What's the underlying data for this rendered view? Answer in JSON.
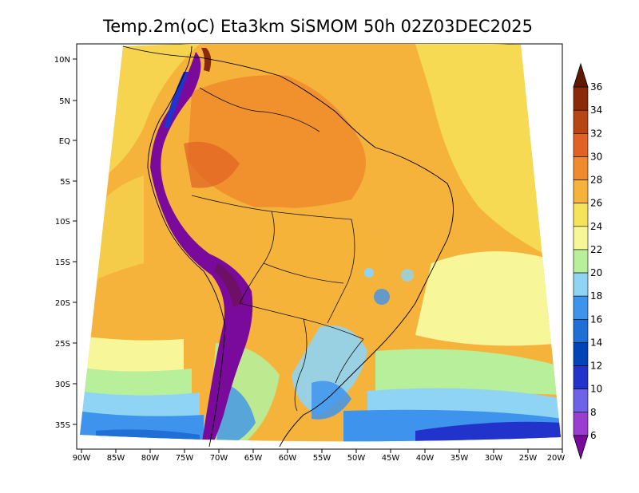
{
  "title": "Temp.2m(oC) Eta3km SiSMOM 50h 02Z03DEC2025",
  "map": {
    "region": "South America",
    "variable": "2 m temperature",
    "units": "oC",
    "lon_ticks": [
      "90W",
      "85W",
      "80W",
      "75W",
      "70W",
      "65W",
      "60W",
      "55W",
      "50W",
      "45W",
      "40W",
      "35W",
      "30W",
      "25W",
      "20W"
    ],
    "lat_ticks": [
      "10N",
      "5N",
      "EQ",
      "5S",
      "10S",
      "15S",
      "20S",
      "25S",
      "30S",
      "35S"
    ]
  },
  "colorbar": {
    "labels": [
      "6",
      "8",
      "10",
      "12",
      "14",
      "16",
      "18",
      "20",
      "22",
      "24",
      "26",
      "28",
      "30",
      "32",
      "34",
      "36"
    ],
    "colors": [
      "#7a0a9c",
      "#9c3dd1",
      "#6d63e8",
      "#2233cc",
      "#0044b8",
      "#1f6fd6",
      "#3e94ec",
      "#8fd4f5",
      "#b7ef9a",
      "#f7f79a",
      "#f6e35a",
      "#f5b33b",
      "#f08b2d",
      "#e06224",
      "#b84514",
      "#8b2a08",
      "#5f1a04"
    ]
  }
}
